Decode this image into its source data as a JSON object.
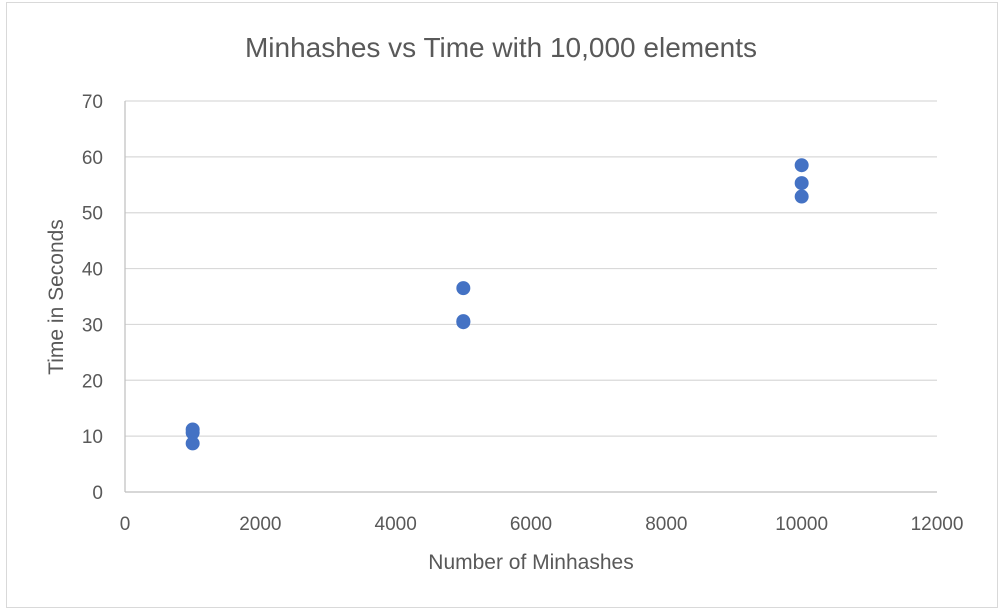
{
  "chart_data": {
    "type": "scatter",
    "title": "Minhashes vs Time with 10,000 elements",
    "xlabel": "Number of Minhashes",
    "ylabel": "Time in Seconds",
    "xlim": [
      0,
      12000
    ],
    "ylim": [
      0,
      70
    ],
    "x_ticks": [
      0,
      2000,
      4000,
      6000,
      8000,
      10000,
      12000
    ],
    "y_ticks": [
      0,
      10,
      20,
      30,
      40,
      50,
      60,
      70
    ],
    "grid": true,
    "legend": "none",
    "marker_color": "#4472C4",
    "series": [
      {
        "points": [
          {
            "x": 1000,
            "y": 11.2
          },
          {
            "x": 1000,
            "y": 10.6
          },
          {
            "x": 1000,
            "y": 8.7
          },
          {
            "x": 5000,
            "y": 36.5
          },
          {
            "x": 5000,
            "y": 30.6
          },
          {
            "x": 5000,
            "y": 30.4
          },
          {
            "x": 10000,
            "y": 58.5
          },
          {
            "x": 10000,
            "y": 55.3
          },
          {
            "x": 10000,
            "y": 52.9
          }
        ]
      }
    ]
  }
}
